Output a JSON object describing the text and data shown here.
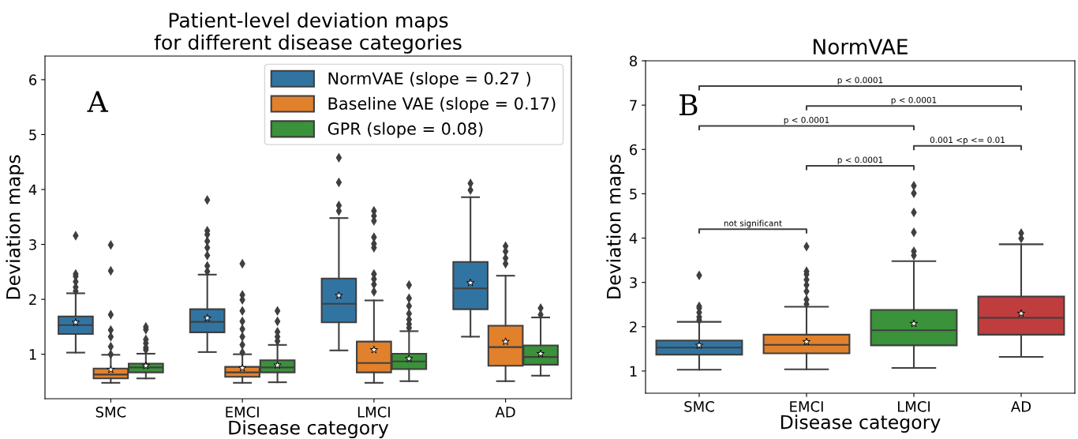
{
  "chart_data": [
    {
      "type": "box",
      "title": "Patient-level deviation maps\nfor different disease categories",
      "xlabel": "Disease category",
      "ylabel": "Deviation maps",
      "categories": [
        "SMC",
        "EMCI",
        "LMCI",
        "AD"
      ],
      "ylim": [
        0.19,
        6.43
      ],
      "yticks": [
        1,
        2,
        3,
        4,
        5,
        6
      ],
      "legend": "top right",
      "grid": false,
      "marker": "diamond",
      "annotations": [
        "A"
      ],
      "series": [
        {
          "name": "NormVAE (slope = 0.27 )",
          "color": "#3274a1",
          "boxes": [
            {
              "low": 1.03,
              "q1": 1.37,
              "median": 1.53,
              "q3": 1.69,
              "high": 2.11,
              "mean": 1.58,
              "outliers": [
                2.15,
                2.22,
                2.32,
                2.42,
                2.46,
                3.16
              ]
            },
            {
              "low": 1.04,
              "q1": 1.4,
              "median": 1.59,
              "q3": 1.82,
              "high": 2.45,
              "mean": 1.66,
              "outliers": [
                2.51,
                2.61,
                2.8,
                2.94,
                3.06,
                3.18,
                3.25,
                3.81
              ]
            },
            {
              "low": 1.07,
              "q1": 1.58,
              "median": 1.92,
              "q3": 2.38,
              "high": 3.48,
              "mean": 2.07,
              "outliers": [
                3.61,
                3.71,
                4.13,
                4.58
              ]
            },
            {
              "low": 1.32,
              "q1": 1.82,
              "median": 2.2,
              "q3": 2.68,
              "high": 3.86,
              "mean": 2.3,
              "outliers": [
                3.99,
                4.11
              ]
            }
          ]
        },
        {
          "name": "Baseline VAE (slope = 0.17)",
          "color": "#e1812c",
          "boxes": [
            {
              "low": 0.48,
              "q1": 0.56,
              "median": 0.63,
              "q3": 0.74,
              "high": 0.99,
              "mean": 0.72,
              "outliers": [
                1.0,
                1.14,
                1.32,
                1.44,
                1.72,
                2.52,
                2.99
              ]
            },
            {
              "low": 0.48,
              "q1": 0.59,
              "median": 0.67,
              "q3": 0.77,
              "high": 1.0,
              "mean": 0.75,
              "outliers": [
                1.03,
                1.17,
                1.32,
                1.46,
                1.6,
                1.79,
                1.99,
                2.08,
                2.65
              ]
            },
            {
              "low": 0.48,
              "q1": 0.67,
              "median": 0.84,
              "q3": 1.23,
              "high": 1.98,
              "mean": 1.08,
              "outliers": [
                2.14,
                2.27,
                2.37,
                2.46,
                2.94,
                3.01,
                3.13,
                3.43,
                3.52,
                3.61
              ]
            },
            {
              "low": 0.51,
              "q1": 0.79,
              "median": 1.13,
              "q3": 1.52,
              "high": 2.43,
              "mean": 1.23,
              "outliers": [
                2.65,
                2.75,
                2.87,
                2.97
              ]
            }
          ]
        },
        {
          "name": "GPR (slope = 0.08)",
          "color": "#3a923a",
          "boxes": [
            {
              "low": 0.56,
              "q1": 0.67,
              "median": 0.76,
              "q3": 0.83,
              "high": 1.01,
              "mean": 0.79,
              "outliers": [
                1.08,
                1.12,
                1.2,
                1.27,
                1.45,
                1.5
              ]
            },
            {
              "low": 0.49,
              "q1": 0.67,
              "median": 0.76,
              "q3": 0.89,
              "high": 1.17,
              "mean": 0.8,
              "outliers": [
                1.24,
                1.32,
                1.41,
                1.6,
                1.79
              ]
            },
            {
              "low": 0.51,
              "q1": 0.73,
              "median": 0.87,
              "q3": 1.01,
              "high": 1.42,
              "mean": 0.92,
              "outliers": [
                1.48,
                1.55,
                1.63,
                1.74,
                1.88,
                2.02,
                2.26
              ]
            },
            {
              "low": 0.61,
              "q1": 0.81,
              "median": 0.95,
              "q3": 1.16,
              "high": 1.67,
              "mean": 1.01,
              "outliers": [
                1.72,
                1.84
              ]
            }
          ]
        }
      ]
    },
    {
      "type": "box",
      "title": "NormVAE",
      "xlabel": "Disease category",
      "ylabel": "Deviation maps",
      "categories": [
        "SMC",
        "EMCI",
        "LMCI",
        "AD"
      ],
      "ylim": [
        0.5,
        8
      ],
      "yticks": [
        1,
        2,
        3,
        4,
        5,
        6,
        7,
        8
      ],
      "grid": false,
      "marker": "diamond",
      "colors": [
        "#3274a1",
        "#e1812c",
        "#3a923a",
        "#c03d3e"
      ],
      "annotations": [
        "B",
        "not significant",
        "p < 0.0001",
        "0.001 <p <= 0.01",
        "p < 0.0001",
        "p < 0.0001",
        "p < 0.0001"
      ],
      "boxes": [
        {
          "low": 1.03,
          "q1": 1.37,
          "median": 1.53,
          "q3": 1.69,
          "high": 2.11,
          "mean": 1.58,
          "outliers": [
            2.15,
            2.22,
            2.32,
            2.42,
            2.46,
            3.16
          ]
        },
        {
          "low": 1.04,
          "q1": 1.4,
          "median": 1.59,
          "q3": 1.82,
          "high": 2.45,
          "mean": 1.66,
          "outliers": [
            2.51,
            2.61,
            2.8,
            2.94,
            3.06,
            3.18,
            3.25,
            3.81
          ]
        },
        {
          "low": 1.07,
          "q1": 1.58,
          "median": 1.92,
          "q3": 2.38,
          "high": 3.48,
          "mean": 2.07,
          "outliers": [
            3.61,
            3.7,
            4.13,
            4.58,
            5.01,
            5.18
          ]
        },
        {
          "low": 1.32,
          "q1": 1.82,
          "median": 2.2,
          "q3": 2.68,
          "high": 3.86,
          "mean": 2.3,
          "outliers": [
            3.99,
            4.11
          ]
        }
      ]
    }
  ]
}
